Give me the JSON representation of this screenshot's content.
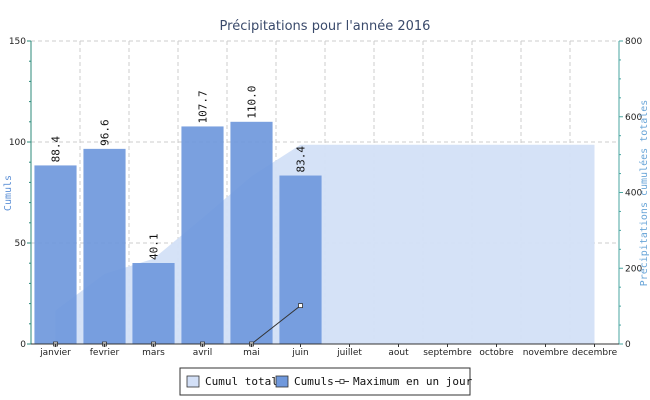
{
  "chart_data": {
    "type": "bar",
    "title": "Précipitations pour l'année 2016",
    "categories": [
      "janvier",
      "fevrier",
      "mars",
      "avril",
      "mai",
      "juin",
      "juillet",
      "aout",
      "septembre",
      "octobre",
      "novembre",
      "decembre"
    ],
    "ylabel": "Cumuls",
    "y2label": "Précipitations cumulées totales",
    "ylim": [
      0,
      150
    ],
    "y2lim": [
      0,
      800
    ],
    "yticks": [
      0,
      50,
      100,
      150
    ],
    "y2ticks": [
      0,
      200,
      400,
      600,
      800
    ],
    "grid": true,
    "legend_position": "bottom",
    "series": [
      {
        "name": "Cumul total",
        "type": "area",
        "axis": "right",
        "color": "#d3e0f7",
        "values": [
          88.4,
          185.0,
          225.1,
          332.8,
          442.8,
          526.2,
          526.2,
          526.2,
          526.2,
          526.2,
          526.2,
          526.2
        ]
      },
      {
        "name": "Cumuls",
        "type": "bar",
        "axis": "left",
        "color": "#6f98dc",
        "values": [
          88.4,
          96.6,
          40.1,
          107.7,
          110.0,
          83.4,
          null,
          null,
          null,
          null,
          null,
          null
        ],
        "labels": [
          "88.4",
          "96.6",
          "40.1",
          "107.7",
          "110.0",
          "83.4"
        ]
      },
      {
        "name": "Maximum en un jour",
        "type": "line",
        "axis": "left",
        "color": "#333333",
        "values": [
          0,
          0,
          0,
          0,
          0,
          19,
          null,
          null,
          null,
          null,
          null,
          null
        ]
      }
    ]
  },
  "legend": {
    "items": [
      {
        "label": "Cumul total",
        "symbol": "area",
        "color": "#d3e0f7"
      },
      {
        "label": "Cumuls",
        "symbol": "bar",
        "color": "#6f98dc"
      },
      {
        "label": "Maximum en un jour",
        "symbol": "line",
        "color": "#333333"
      }
    ]
  },
  "colors": {
    "axis_left": "#2b8a7a",
    "axis_right": "#4aa6a0",
    "grid": "#cccccc"
  }
}
